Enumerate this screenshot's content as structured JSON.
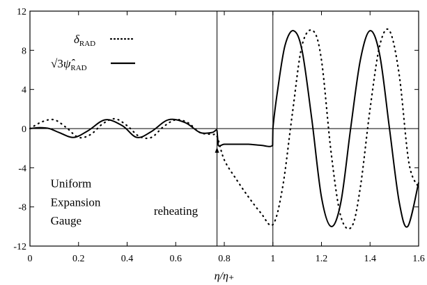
{
  "chart_data": {
    "type": "line",
    "title": "",
    "xlabel": "η/η₊",
    "ylabel": "",
    "xlim": [
      0,
      1.6
    ],
    "ylim": [
      -12,
      12
    ],
    "x_ticks": [
      0,
      0.2,
      0.4,
      0.6,
      0.8,
      1,
      1.2,
      1.4,
      1.6
    ],
    "x_tick_labels": [
      "0",
      "0.2",
      "0.4",
      "0.6",
      "0.8",
      "1",
      "1.2",
      "1.4",
      "1.6"
    ],
    "y_ticks": [
      -12,
      -8,
      -4,
      0,
      4,
      8,
      12
    ],
    "y_tick_labels": [
      "-12",
      "-8",
      "-4",
      "0",
      "4",
      "8",
      "12"
    ],
    "legend_position": "top-left",
    "series": [
      {
        "name": "δ_RAD",
        "style": "dotted",
        "x": [
          0.0,
          0.05,
          0.1,
          0.15,
          0.2,
          0.25,
          0.3,
          0.35,
          0.4,
          0.45,
          0.5,
          0.55,
          0.6,
          0.65,
          0.7,
          0.75,
          0.77,
          0.8,
          0.85,
          0.9,
          0.95,
          1.0,
          1.04,
          1.08,
          1.12,
          1.165,
          1.2,
          1.24,
          1.28,
          1.325,
          1.36,
          1.4,
          1.44,
          1.48,
          1.52,
          1.56,
          1.6
        ],
        "y": [
          0.0,
          0.7,
          0.9,
          0.1,
          -0.9,
          -0.6,
          0.5,
          1.0,
          0.3,
          -0.8,
          -0.9,
          0.2,
          0.9,
          0.6,
          -0.4,
          -0.6,
          -0.8,
          -3.2,
          -5.2,
          -7.0,
          -8.6,
          -9.8,
          -6.0,
          1.5,
          8.5,
          10.0,
          7.0,
          -2.5,
          -9.0,
          -10.0,
          -6.0,
          2.0,
          8.5,
          10.0,
          5.5,
          -3.5,
          -6.0
        ]
      },
      {
        "name": "√3ψ̂_RAD",
        "style": "solid",
        "x": [
          0.0,
          0.04,
          0.08,
          0.12,
          0.18,
          0.24,
          0.31,
          0.38,
          0.44,
          0.5,
          0.57,
          0.64,
          0.7,
          0.75,
          0.77,
          0.775,
          0.8,
          0.85,
          0.9,
          0.95,
          0.999,
          1.0,
          1.02,
          1.05,
          1.085,
          1.12,
          1.16,
          1.2,
          1.24,
          1.28,
          1.32,
          1.36,
          1.4,
          1.44,
          1.48,
          1.52,
          1.555,
          1.6
        ],
        "y": [
          0.0,
          0.1,
          0.0,
          -0.4,
          -0.9,
          -0.2,
          0.9,
          0.3,
          -0.9,
          -0.3,
          0.9,
          0.6,
          -0.4,
          -0.4,
          -0.2,
          -1.7,
          -1.6,
          -1.6,
          -1.6,
          -1.7,
          -1.7,
          0.0,
          4.0,
          8.5,
          10.0,
          8.0,
          1.0,
          -7.0,
          -10.0,
          -7.5,
          0.0,
          7.0,
          10.0,
          7.5,
          0.0,
          -7.5,
          -10.0,
          -5.5
        ]
      }
    ],
    "vertical_lines": [
      0.77,
      1.0
    ],
    "horizontal_lines": [
      0
    ],
    "annotations": [
      {
        "text": "Uniform",
        "x": 0.085,
        "y": -6.0
      },
      {
        "text": "Expansion",
        "x": 0.085,
        "y": -7.9
      },
      {
        "text": "Gauge",
        "x": 0.085,
        "y": -9.8
      },
      {
        "text": "reheating",
        "x": 0.51,
        "y": -8.8,
        "arrow_to": [
          0.77,
          -1.9
        ]
      }
    ],
    "legend_label_1_main": "δ",
    "legend_label_1_sub": "RAD",
    "legend_label_2_prefix": "√3",
    "legend_label_2_main": "ψ̂",
    "legend_label_2_sub": "RAD"
  }
}
